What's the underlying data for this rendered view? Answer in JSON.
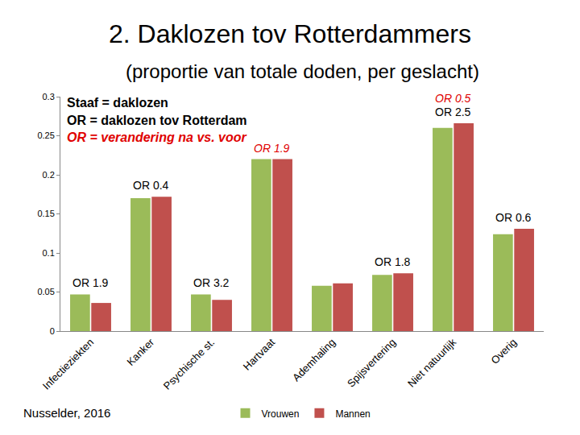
{
  "chart_data": {
    "type": "bar",
    "title": "2. Daklozen tov Rotterdammers",
    "subtitle": "(proportie van totale doden, per geslacht)",
    "categories": [
      "Infectieziekten",
      "Kanker",
      "Psychische st.",
      "Hartvaat",
      "Ademhaling",
      "Spijsvertering",
      "Niet natuurlijk",
      "Overig"
    ],
    "series": [
      {
        "name": "Vrouwen",
        "color": "#9bbb59",
        "values": [
          0.047,
          0.17,
          0.047,
          0.22,
          0.058,
          0.072,
          0.26,
          0.124
        ]
      },
      {
        "name": "Mannen",
        "color": "#c0504d",
        "values": [
          0.036,
          0.172,
          0.04,
          0.22,
          0.061,
          0.074,
          0.266,
          0.131
        ]
      }
    ],
    "ylim": [
      0,
      0.3
    ],
    "yticks": [
      0,
      0.05,
      0.1,
      0.15,
      0.2,
      0.25,
      0.3
    ],
    "grid": false,
    "legend": "bottom",
    "key": "Staaf = daklozen",
    "notes": [
      {
        "text": "OR = daklozen tov Rotterdam",
        "color": "#000000",
        "labels": [
          {
            "category": "Infectieziekten",
            "text": "OR 1.9"
          },
          {
            "category": "Kanker",
            "text": "OR 0.4"
          },
          {
            "category": "Psychische st.",
            "text": "OR 3.2"
          },
          {
            "category": "Spijsvertering",
            "text": "OR 1.8"
          },
          {
            "category": "Niet natuurlijk",
            "text": "OR 2.5"
          },
          {
            "category": "Overig",
            "text": "OR 0.6"
          }
        ]
      },
      {
        "text": "OR = verandering na vs. voor",
        "color": "#e00000",
        "labels": [
          {
            "category": "Hartvaat",
            "text": "OR 1.9"
          },
          {
            "category": "Niet natuurlijk",
            "text": "OR 0.5"
          }
        ]
      }
    ],
    "source": "Nusselder, 2016"
  }
}
